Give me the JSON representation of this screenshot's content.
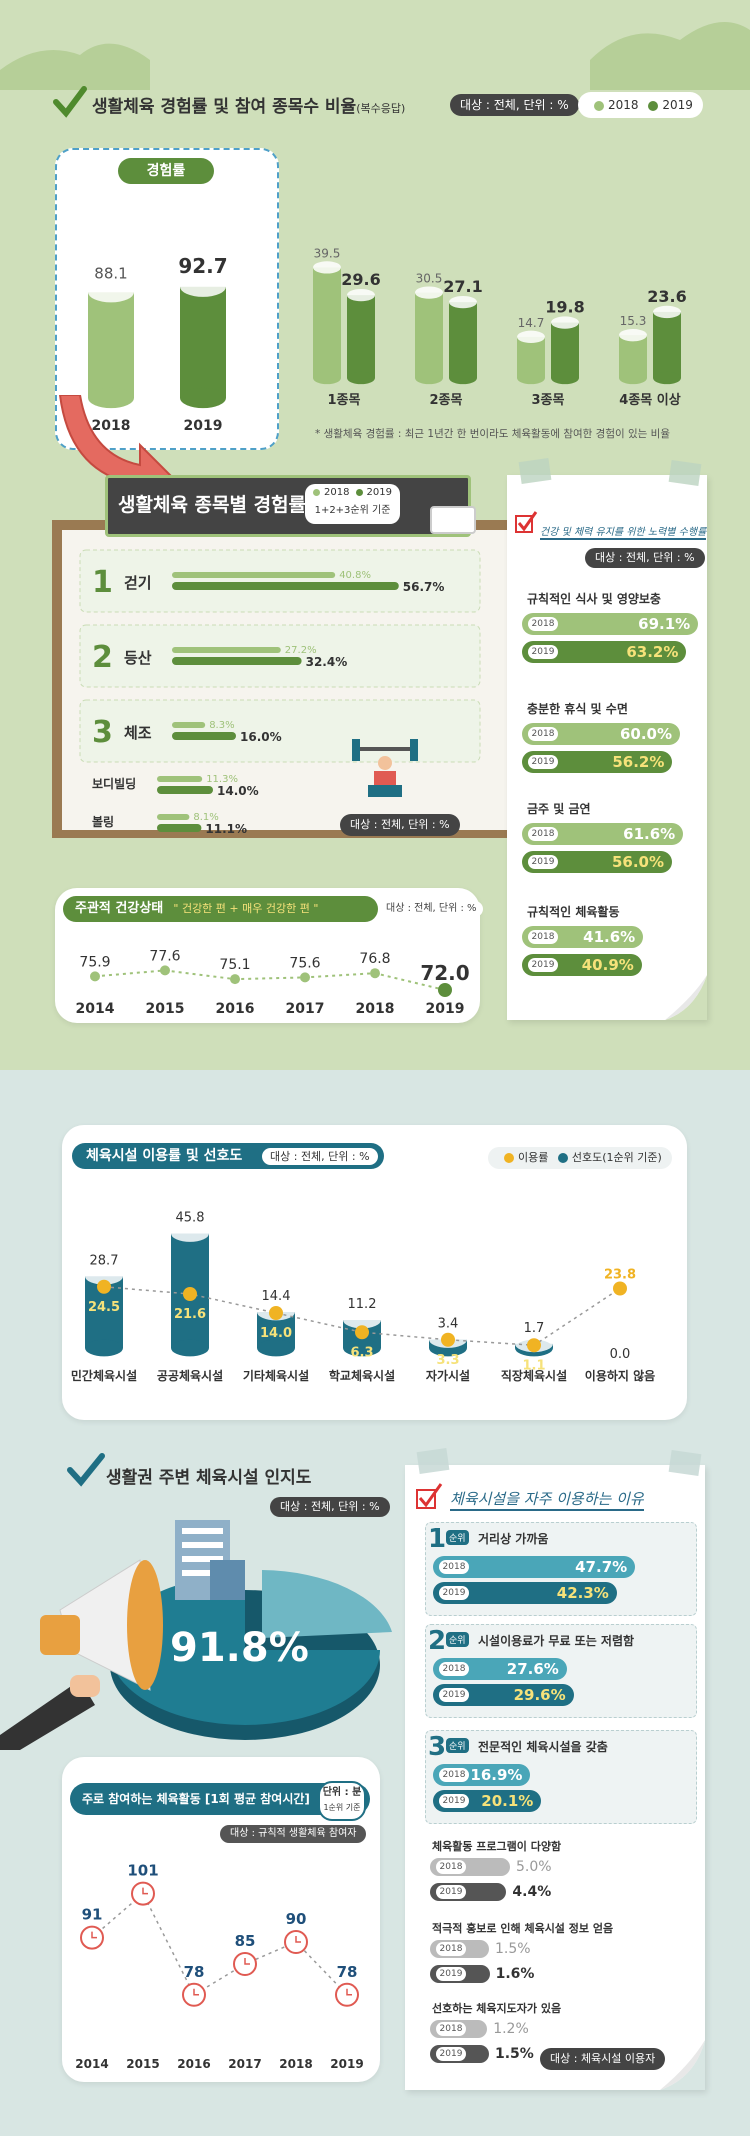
{
  "colors": {
    "light_green": "#9fc27a",
    "dark_green": "#5d8e3c",
    "teal": "#1f6f84",
    "yellow": "#f0b323",
    "red": "#e05a52"
  },
  "participation": {
    "title": "생활체육 경험률 및 참여 종목수 비율",
    "title_suffix": "(복수응답)",
    "target": "대상 : 전체, 단위 : %",
    "legend": [
      "2018",
      "2019"
    ],
    "experience_label": "경험률",
    "note": "* 생활체육 경험률 : 최근 1년간 한 번이라도 체육활동에 참여한 경험이 있는 비율"
  },
  "events": {
    "title": "생활체육 종목별 경험률",
    "legend": [
      "2018",
      "2019"
    ],
    "basis": "1+2+3순위 기준",
    "target": "대상 : 전체, 단위 : %",
    "ranks": [
      "1",
      "2",
      "3"
    ]
  },
  "health": {
    "title": "주관적 건강상태",
    "subtitle": "\" 건강한 편 + 매우 건강한 편 \"",
    "target": "대상 : 전체, 단위 : %"
  },
  "efforts": {
    "title": "건강 및 체력 유지를 위한 노력별 수행률",
    "target": "대상 : 전체, 단위 : %",
    "year_tags": [
      "2018",
      "2019"
    ]
  },
  "facilities": {
    "title": "체육시설 이용률 및 선호도",
    "target": "대상 : 전체, 단위 : %",
    "legend": [
      "이용률",
      "선호도(1순위 기준)"
    ]
  },
  "awareness": {
    "title": "생활권 주변 체육시설 인지도",
    "target": "대상 : 전체, 단위 : %",
    "value": "91.8%"
  },
  "time": {
    "title": "주로 참여하는 체육활동 [1회 평균 참여시간]",
    "unit": "단위 : 분",
    "unit_sub": "1순위 기준",
    "target": "대상 : 규칙적 생활체육 참여자"
  },
  "reasons": {
    "title": "체육시설을 자주 이용하는 이유",
    "rank_suffix": "순위",
    "target": "대상 : 체육시설 이용자",
    "year_tags": [
      "2018",
      "2019"
    ]
  },
  "chart_data": [
    {
      "type": "bar",
      "id": "experience",
      "categories": [
        "2018",
        "2019"
      ],
      "values": [
        88.1,
        92.7
      ]
    },
    {
      "type": "bar",
      "id": "event_count",
      "categories": [
        "1종목",
        "2종목",
        "3종목",
        "4종목 이상"
      ],
      "series": [
        {
          "name": "2018",
          "values": [
            39.5,
            30.5,
            14.7,
            15.3
          ]
        },
        {
          "name": "2019",
          "values": [
            29.6,
            27.1,
            19.8,
            23.6
          ]
        }
      ]
    },
    {
      "type": "bar",
      "id": "events_by_type",
      "categories": [
        "걷기",
        "등산",
        "체조",
        "보디빌딩",
        "볼링"
      ],
      "series": [
        {
          "name": "2018",
          "values": [
            "40.8%",
            "27.2%",
            "8.3%",
            "11.3%",
            "8.1%"
          ]
        },
        {
          "name": "2019",
          "values": [
            "56.7%",
            "32.4%",
            "16.0%",
            "14.0%",
            "11.1%"
          ]
        }
      ]
    },
    {
      "type": "line",
      "id": "health",
      "x": [
        "2014",
        "2015",
        "2016",
        "2017",
        "2018",
        "2019"
      ],
      "values": [
        75.9,
        77.6,
        75.1,
        75.6,
        76.8,
        72.0
      ]
    },
    {
      "type": "bar",
      "id": "efforts",
      "categories": [
        "규칙적인 식사 및 영양보충",
        "충분한 휴식 및 수면",
        "금주 및 금연",
        "규칙적인 체육활동"
      ],
      "series": [
        {
          "name": "2018",
          "values": [
            "69.1%",
            "60.0%",
            "61.6%",
            "41.6%"
          ]
        },
        {
          "name": "2019",
          "values": [
            "63.2%",
            "56.2%",
            "56.0%",
            "40.9%"
          ]
        }
      ]
    },
    {
      "type": "bar",
      "id": "facilities",
      "categories": [
        "민간체육시설",
        "공공체육시설",
        "기타체육시설",
        "학교체육시설",
        "자가시설",
        "직장체육시설",
        "이용하지 않음"
      ],
      "series": [
        {
          "name": "이용률",
          "values": [
            28.7,
            45.8,
            14.4,
            11.2,
            3.4,
            1.7,
            0.0
          ]
        },
        {
          "name": "선호도(1순위 기준)",
          "values": [
            24.5,
            21.6,
            14.0,
            6.3,
            3.3,
            1.1,
            23.8
          ]
        }
      ],
      "labels_use": [
        "28.7",
        "45.8",
        "14.4",
        "11.2",
        "3.4",
        "1.7",
        "0.0"
      ],
      "labels_pref": [
        "24.5",
        "21.6",
        "14.0",
        "6.3",
        "3.3",
        "1.1",
        "23.8"
      ]
    },
    {
      "type": "line",
      "id": "time",
      "x": [
        "2014",
        "2015",
        "2016",
        "2017",
        "2018",
        "2019"
      ],
      "values": [
        91,
        101,
        78,
        85,
        90,
        78
      ]
    },
    {
      "type": "bar",
      "id": "reasons",
      "categories": [
        "거리상 가까움",
        "시설이용료가 무료 또는 저렴함",
        "전문적인 체육시설을 갖춤",
        "체육활동 프로그램이 다양함",
        "적극적 홍보로 인해 체육시설 정보 얻음",
        "선호하는 체육지도자가 있음"
      ],
      "series": [
        {
          "name": "2018",
          "values": [
            "47.7%",
            "27.6%",
            "16.9%",
            "5.0%",
            "1.5%",
            "1.2%"
          ]
        },
        {
          "name": "2019",
          "values": [
            "42.3%",
            "29.6%",
            "20.1%",
            "4.4%",
            "1.6%",
            "1.5%"
          ]
        }
      ]
    }
  ]
}
